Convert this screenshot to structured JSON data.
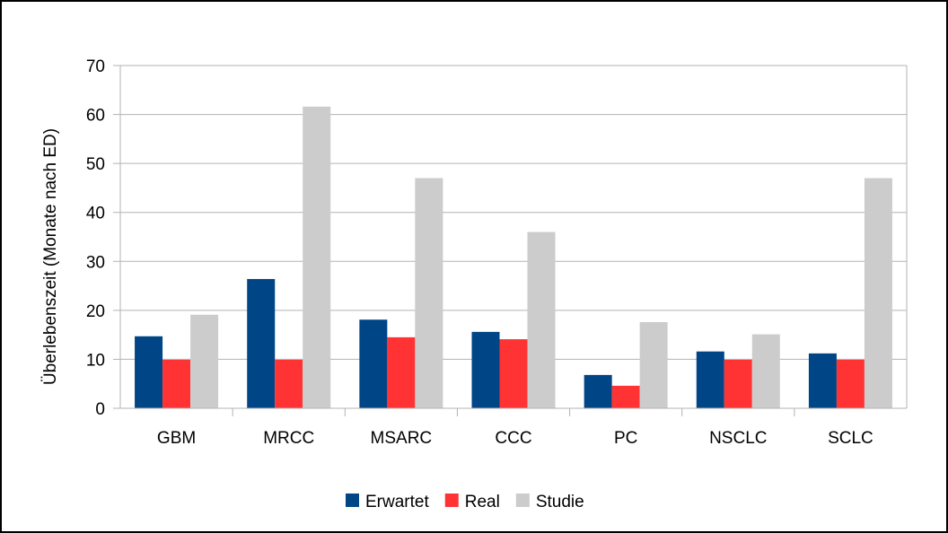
{
  "chart_data": {
    "type": "bar",
    "categories": [
      "GBM",
      "MRCC",
      "MSARC",
      "CCC",
      "PC",
      "NSCLC",
      "SCLC"
    ],
    "series": [
      {
        "name": "Erwartet",
        "color": "#004586",
        "values": [
          14.7,
          26.4,
          18.1,
          15.6,
          6.8,
          11.6,
          11.2
        ]
      },
      {
        "name": "Real",
        "color": "#ff3333",
        "values": [
          9.9,
          9.9,
          14.5,
          14.1,
          4.6,
          9.9,
          9.9
        ]
      },
      {
        "name": "Studie",
        "color": "#cccccc",
        "values": [
          19.1,
          61.6,
          47.0,
          36.0,
          17.6,
          15.1,
          47.0
        ]
      }
    ],
    "title": "",
    "xlabel": "",
    "ylabel": "Überlebenszeit (Monate nach ED)",
    "ylim": [
      0,
      70
    ],
    "yticks": [
      0,
      10,
      20,
      30,
      40,
      50,
      60,
      70
    ],
    "grid": true,
    "legend_position": "bottom"
  }
}
